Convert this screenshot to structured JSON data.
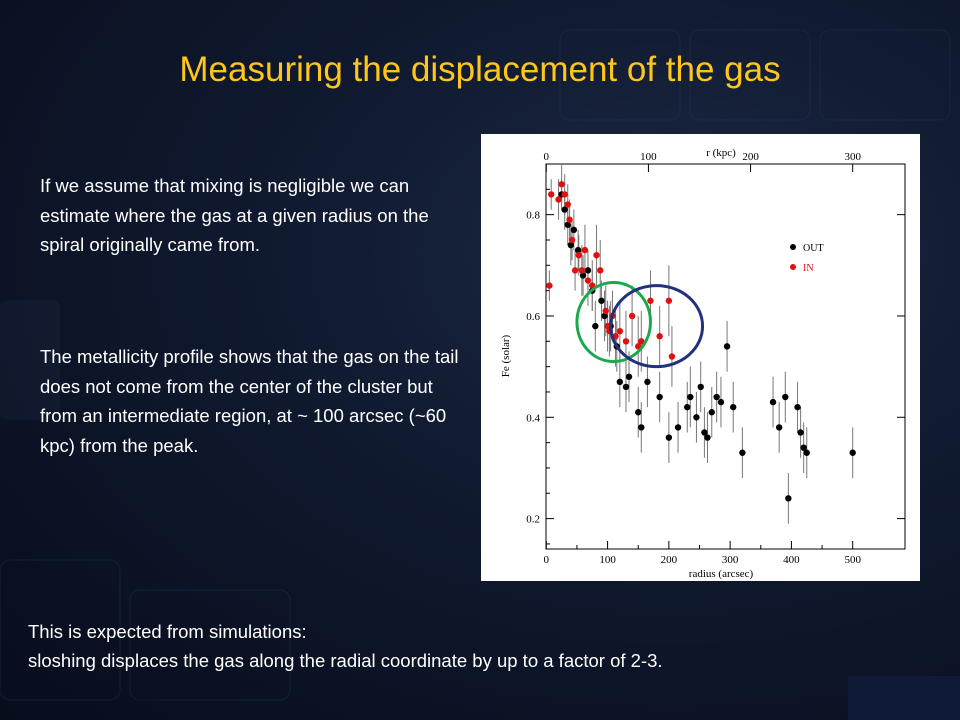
{
  "slide": {
    "title": "Measuring the displacement of the gas",
    "paragraph1": "If we assume that mixing is negligible we can estimate where the  gas at a given radius on the spiral originally came from.",
    "paragraph2": "The metallicity profile shows that the gas on the tail does not come from the center of the cluster but from an intermediate region, at ~ 100 arcsec (~60 kpc) from the peak.",
    "bottom_line1": "This is expected from simulations:",
    "bottom_line2": "sloshing displaces the gas along the radial coordinate by up to a factor of 2-3."
  },
  "colors": {
    "title": "#ffc61a",
    "out_points": "#000000",
    "in_points": "#e01010",
    "green_circle": "#1aa84a",
    "blue_circle": "#23307a"
  },
  "chart_data": {
    "type": "scatter",
    "xlabel": "radius (arcsec)",
    "ylabel": "Fe (solar)",
    "top_xlabel": "r (kpc)",
    "xlim": [
      0,
      525
    ],
    "ylim": [
      0.14,
      0.9
    ],
    "x_ticks": [
      0,
      100,
      200,
      300,
      400,
      500
    ],
    "y_ticks": [
      0.2,
      0.4,
      0.6,
      0.8
    ],
    "top_ticks_kpc": [
      0,
      100,
      200,
      300
    ],
    "kpc_per_arcsec": 0.6,
    "legend": {
      "position": "top-right",
      "entries": [
        "OUT",
        "IN"
      ]
    },
    "grid": false,
    "series": [
      {
        "name": "OUT",
        "color": "#000000",
        "points": [
          {
            "x": 25,
            "y": 0.84,
            "err": 0.03
          },
          {
            "x": 30,
            "y": 0.81,
            "err": 0.04
          },
          {
            "x": 35,
            "y": 0.78,
            "err": 0.04
          },
          {
            "x": 40,
            "y": 0.74,
            "err": 0.04
          },
          {
            "x": 45,
            "y": 0.77,
            "err": 0.04
          },
          {
            "x": 52,
            "y": 0.73,
            "err": 0.04
          },
          {
            "x": 60,
            "y": 0.68,
            "err": 0.04
          },
          {
            "x": 68,
            "y": 0.69,
            "err": 0.04
          },
          {
            "x": 75,
            "y": 0.65,
            "err": 0.04
          },
          {
            "x": 80,
            "y": 0.58,
            "err": 0.05
          },
          {
            "x": 90,
            "y": 0.63,
            "err": 0.04
          },
          {
            "x": 95,
            "y": 0.6,
            "err": 0.05
          },
          {
            "x": 105,
            "y": 0.58,
            "err": 0.05
          },
          {
            "x": 115,
            "y": 0.54,
            "err": 0.05
          },
          {
            "x": 120,
            "y": 0.47,
            "err": 0.05
          },
          {
            "x": 130,
            "y": 0.46,
            "err": 0.05
          },
          {
            "x": 135,
            "y": 0.48,
            "err": 0.05
          },
          {
            "x": 150,
            "y": 0.41,
            "err": 0.05
          },
          {
            "x": 155,
            "y": 0.38,
            "err": 0.05
          },
          {
            "x": 165,
            "y": 0.47,
            "err": 0.05
          },
          {
            "x": 185,
            "y": 0.44,
            "err": 0.05
          },
          {
            "x": 200,
            "y": 0.36,
            "err": 0.05
          },
          {
            "x": 215,
            "y": 0.38,
            "err": 0.05
          },
          {
            "x": 230,
            "y": 0.42,
            "err": 0.05
          },
          {
            "x": 235,
            "y": 0.44,
            "err": 0.06
          },
          {
            "x": 245,
            "y": 0.4,
            "err": 0.05
          },
          {
            "x": 252,
            "y": 0.46,
            "err": 0.05
          },
          {
            "x": 258,
            "y": 0.37,
            "err": 0.05
          },
          {
            "x": 263,
            "y": 0.36,
            "err": 0.05
          },
          {
            "x": 270,
            "y": 0.41,
            "err": 0.05
          },
          {
            "x": 278,
            "y": 0.44,
            "err": 0.05
          },
          {
            "x": 285,
            "y": 0.43,
            "err": 0.05
          },
          {
            "x": 295,
            "y": 0.54,
            "err": 0.05
          },
          {
            "x": 305,
            "y": 0.42,
            "err": 0.05
          },
          {
            "x": 320,
            "y": 0.33,
            "err": 0.05
          },
          {
            "x": 370,
            "y": 0.43,
            "err": 0.05
          },
          {
            "x": 380,
            "y": 0.38,
            "err": 0.05
          },
          {
            "x": 390,
            "y": 0.44,
            "err": 0.05
          },
          {
            "x": 395,
            "y": 0.24,
            "err": 0.05
          },
          {
            "x": 410,
            "y": 0.42,
            "err": 0.05
          },
          {
            "x": 415,
            "y": 0.37,
            "err": 0.05
          },
          {
            "x": 420,
            "y": 0.34,
            "err": 0.05
          },
          {
            "x": 425,
            "y": 0.33,
            "err": 0.05
          },
          {
            "x": 500,
            "y": 0.33,
            "err": 0.05
          }
        ]
      },
      {
        "name": "IN",
        "color": "#e01010",
        "points": [
          {
            "x": 5,
            "y": 0.66,
            "err": 0.03
          },
          {
            "x": 8,
            "y": 0.84,
            "err": 0.03
          },
          {
            "x": 20,
            "y": 0.83,
            "err": 0.04
          },
          {
            "x": 25,
            "y": 0.86,
            "err": 0.04
          },
          {
            "x": 30,
            "y": 0.84,
            "err": 0.04
          },
          {
            "x": 35,
            "y": 0.82,
            "err": 0.04
          },
          {
            "x": 38,
            "y": 0.79,
            "err": 0.04
          },
          {
            "x": 42,
            "y": 0.75,
            "err": 0.04
          },
          {
            "x": 47,
            "y": 0.69,
            "err": 0.04
          },
          {
            "x": 53,
            "y": 0.72,
            "err": 0.04
          },
          {
            "x": 58,
            "y": 0.69,
            "err": 0.05
          },
          {
            "x": 63,
            "y": 0.73,
            "err": 0.05
          },
          {
            "x": 68,
            "y": 0.67,
            "err": 0.05
          },
          {
            "x": 75,
            "y": 0.66,
            "err": 0.05
          },
          {
            "x": 82,
            "y": 0.72,
            "err": 0.06
          },
          {
            "x": 88,
            "y": 0.69,
            "err": 0.06
          },
          {
            "x": 97,
            "y": 0.61,
            "err": 0.05
          },
          {
            "x": 100,
            "y": 0.58,
            "err": 0.05
          },
          {
            "x": 103,
            "y": 0.57,
            "err": 0.05
          },
          {
            "x": 108,
            "y": 0.6,
            "err": 0.05
          },
          {
            "x": 113,
            "y": 0.56,
            "err": 0.06
          },
          {
            "x": 120,
            "y": 0.57,
            "err": 0.06
          },
          {
            "x": 130,
            "y": 0.55,
            "err": 0.06
          },
          {
            "x": 140,
            "y": 0.6,
            "err": 0.06
          },
          {
            "x": 150,
            "y": 0.54,
            "err": 0.06
          },
          {
            "x": 155,
            "y": 0.55,
            "err": 0.06
          },
          {
            "x": 170,
            "y": 0.63,
            "err": 0.06
          },
          {
            "x": 185,
            "y": 0.56,
            "err": 0.06
          },
          {
            "x": 200,
            "y": 0.63,
            "err": 0.07
          },
          {
            "x": 205,
            "y": 0.52,
            "err": 0.06
          }
        ]
      }
    ],
    "annotations": [
      {
        "shape": "ellipse",
        "color": "green",
        "cx": 110,
        "cy": 0.588,
        "rx": 60,
        "ry": 0.078
      },
      {
        "shape": "ellipse",
        "color": "blue",
        "cx": 180,
        "cy": 0.58,
        "rx": 75,
        "ry": 0.08
      }
    ]
  }
}
